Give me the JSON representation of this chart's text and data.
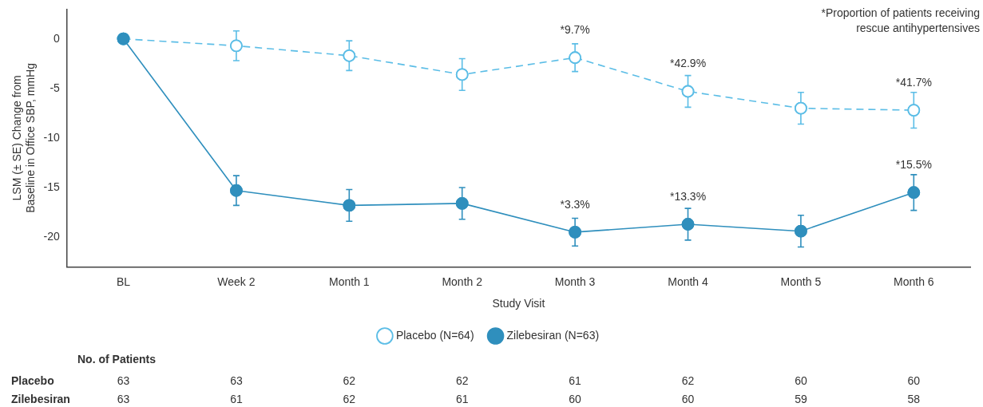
{
  "chart_data": {
    "type": "line",
    "xlabel": "Study Visit",
    "ylabel": "LSM (± SE) Change from Baseline in Office SBP, mmHg",
    "categories": [
      "BL",
      "Week 2",
      "Month 1",
      "Month 2",
      "Month 3",
      "Month 4",
      "Month 5",
      "Month 6"
    ],
    "ylim": [
      -23,
      3
    ],
    "yticks": [
      -20,
      -15,
      -10,
      -5,
      0
    ],
    "series": [
      {
        "name": "Placebo (N=64)",
        "color": "#5bbde6",
        "line_style": "dashed",
        "marker": "circle",
        "values": [
          0,
          -0.7,
          -1.7,
          -3.6,
          -1.9,
          -5.3,
          -7.0,
          -7.2
        ],
        "errors": [
          null,
          1.5,
          1.5,
          1.6,
          1.4,
          1.6,
          1.6,
          1.8
        ]
      },
      {
        "name": "Zilebesiran (N=63)",
        "color": "#2f8fbd",
        "line_style": "solid",
        "marker": "circle",
        "values": [
          0,
          -15.3,
          -16.8,
          -16.6,
          -19.5,
          -18.7,
          -19.4,
          -15.5
        ],
        "errors": [
          null,
          1.5,
          1.6,
          1.6,
          1.4,
          1.6,
          1.6,
          1.8
        ]
      }
    ],
    "grid": false,
    "legend": "bottom",
    "annotations": [
      "*Proportion of patients receiving rescue antihypertensives",
      {
        "text": "*9.7%",
        "x": "Month 3",
        "y": -1.9
      },
      {
        "text": "*42.9%",
        "x": "Month 4",
        "y": -5.3
      },
      {
        "text": "*41.7%",
        "x": "Month 6",
        "y": -7.2
      },
      {
        "text": "*3.3%",
        "x": "Month 3",
        "y": -19.5
      },
      {
        "text": "*13.3%",
        "x": "Month 4",
        "y": -18.7
      },
      {
        "text": "*15.5%",
        "x": "Month 6",
        "y": -15.5
      },
      "No. of Patients",
      "Placebo",
      "63",
      "63",
      "62",
      "62",
      "61",
      "62",
      "60",
      "60",
      "Zilebesiran",
      "63",
      "61",
      "62",
      "61",
      "60",
      "60",
      "59",
      "58"
    ]
  }
}
